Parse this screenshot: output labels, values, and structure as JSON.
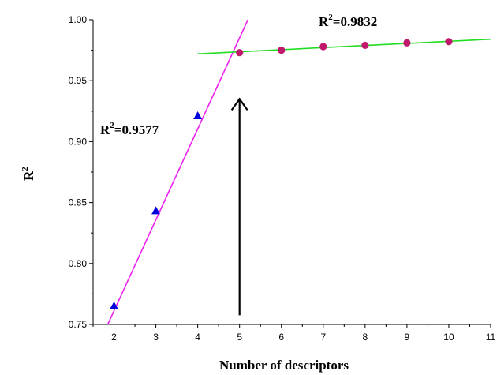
{
  "chart_data": {
    "type": "scatter",
    "title": "",
    "xlabel": "Number of descriptors",
    "ylabel": "R",
    "ylabel_sup": "2",
    "xlim": [
      1.5,
      11
    ],
    "ylim": [
      0.75,
      1.0
    ],
    "xticks": [
      2,
      3,
      4,
      5,
      6,
      7,
      8,
      9,
      10,
      11
    ],
    "yticks": [
      0.75,
      0.8,
      0.85,
      0.9,
      0.95,
      1.0
    ],
    "yticklabels": [
      "0.75",
      "0.80",
      "0.85",
      "0.90",
      "0.95",
      "1.00"
    ],
    "grid": false,
    "series": [
      {
        "marker": "triangle",
        "color": "#0000dd",
        "x": [
          2,
          3,
          4
        ],
        "y": [
          0.765,
          0.843,
          0.921
        ]
      },
      {
        "marker": "circle",
        "color": "#c0186a",
        "x": [
          5,
          6,
          7,
          8,
          9,
          10
        ],
        "y": [
          0.973,
          0.975,
          0.978,
          0.979,
          0.981,
          0.982
        ]
      }
    ],
    "fit_lines": [
      {
        "color": "#ee22ee",
        "x": [
          1.85,
          5.2
        ],
        "y": [
          0.75,
          1.0
        ]
      },
      {
        "color": "#22dd22",
        "x": [
          4.0,
          11.0
        ],
        "y": [
          0.972,
          0.984
        ]
      }
    ],
    "annotations": [
      {
        "base": "R",
        "sup": "2",
        "text": "=0.9832"
      },
      {
        "base": "R",
        "sup": "2",
        "text": "=0.9577"
      }
    ],
    "arrow": {
      "x": 5,
      "y_from": 0.7575,
      "y_to": 0.935
    }
  }
}
